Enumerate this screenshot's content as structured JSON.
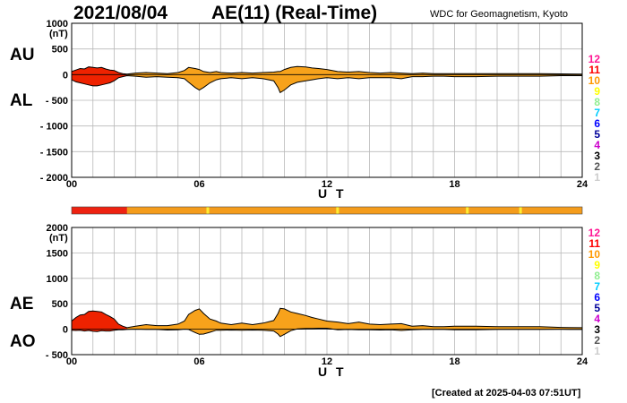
{
  "header": {
    "date": "2021/08/04",
    "title": "AE(11) (Real-Time)",
    "org": "WDC for Geomagnetism, Kyoto"
  },
  "footer": {
    "created": "[Created at 2025-04-03 07:51UT]"
  },
  "legend": {
    "labels": [
      "12",
      "11",
      "10",
      "9",
      "8",
      "7",
      "6",
      "5",
      "4",
      "3",
      "2",
      "1"
    ],
    "colors": [
      "#ff1493",
      "#ff0000",
      "#ff9900",
      "#ffff00",
      "#90ee90",
      "#00ccff",
      "#0000ff",
      "#000099",
      "#cc00cc",
      "#000000",
      "#555555",
      "#cccccc"
    ]
  },
  "colors": {
    "fill_early": "#ee2200",
    "fill_main": "#f7a21b",
    "bar_red": "#ee2211",
    "bar_orange": "#f49c1c",
    "bar_tick": "#ffee33"
  },
  "status_bar": {
    "red_until_ut": 2.6,
    "tick_hours": [
      6.4,
      12.5,
      18.6,
      21.1
    ]
  },
  "chart_data": [
    {
      "type": "area",
      "side_labels": {
        "upper": "AU",
        "lower": "AL"
      },
      "unit": "(nT)",
      "xlabel": "U T",
      "ylim": [
        -2000,
        1000
      ],
      "yticks": [
        1000,
        500,
        0,
        -500,
        -1000,
        -1500,
        -2000
      ],
      "ytick_labels": [
        "1000",
        "500",
        "0",
        "- 500",
        "- 1000",
        "- 1500",
        "- 2000"
      ],
      "xlim": [
        0,
        24
      ],
      "xticks": [
        0,
        6,
        12,
        18,
        24
      ],
      "xtick_labels": [
        "00",
        "06",
        "12",
        "18",
        "24"
      ],
      "grid": true,
      "series": [
        {
          "x": [
            0,
            0.2,
            0.4,
            0.6,
            0.8,
            1.0,
            1.2,
            1.4,
            1.6,
            1.8,
            2.0,
            2.2,
            2.4,
            2.6,
            3.0,
            3.5,
            4.0,
            4.5,
            5.0,
            5.3,
            5.5,
            5.8,
            6.0,
            6.2,
            6.5,
            6.8,
            7.0,
            7.5,
            8.0,
            8.5,
            9.0,
            9.5,
            9.7,
            9.8,
            10.0,
            10.3,
            10.6,
            11.0,
            11.3,
            11.6,
            12.0,
            12.5,
            13.0,
            13.5,
            14.0,
            14.5,
            15.0,
            15.5,
            16.0,
            16.5,
            17.0,
            17.5,
            18.0,
            19.0,
            20.0,
            21.0,
            22.0,
            23.0,
            24.0
          ],
          "values": [
            60,
            90,
            120,
            110,
            150,
            140,
            130,
            140,
            110,
            90,
            80,
            40,
            20,
            10,
            30,
            40,
            30,
            20,
            40,
            80,
            140,
            120,
            100,
            60,
            40,
            60,
            40,
            30,
            40,
            30,
            40,
            50,
            60,
            60,
            100,
            140,
            160,
            150,
            130,
            120,
            100,
            60,
            50,
            60,
            40,
            30,
            40,
            30,
            20,
            30,
            20,
            20,
            20,
            20,
            20,
            20,
            20,
            15,
            10
          ]
        },
        {
          "x": [
            0,
            0.2,
            0.4,
            0.6,
            0.8,
            1.0,
            1.2,
            1.4,
            1.6,
            1.8,
            2.0,
            2.2,
            2.4,
            2.6,
            3.0,
            3.5,
            4.0,
            4.5,
            5.0,
            5.3,
            5.5,
            5.8,
            6.0,
            6.2,
            6.5,
            6.8,
            7.0,
            7.5,
            8.0,
            8.5,
            9.0,
            9.5,
            9.7,
            9.8,
            10.0,
            10.3,
            10.6,
            11.0,
            11.3,
            11.6,
            12.0,
            12.5,
            13.0,
            13.5,
            14.0,
            14.5,
            15.0,
            15.5,
            16.0,
            16.5,
            17.0,
            17.5,
            18.0,
            19.0,
            20.0,
            21.0,
            22.0,
            23.0,
            24.0
          ],
          "values": [
            -100,
            -140,
            -160,
            -180,
            -200,
            -220,
            -220,
            -200,
            -180,
            -160,
            -120,
            -60,
            -40,
            -20,
            -30,
            -50,
            -40,
            -50,
            -60,
            -80,
            -150,
            -250,
            -300,
            -250,
            -160,
            -100,
            -80,
            -60,
            -80,
            -60,
            -80,
            -120,
            -250,
            -350,
            -300,
            -200,
            -150,
            -120,
            -100,
            -80,
            -60,
            -80,
            -60,
            -80,
            -60,
            -60,
            -60,
            -80,
            -40,
            -40,
            -30,
            -30,
            -40,
            -40,
            -30,
            -30,
            -30,
            -20,
            -20
          ]
        }
      ]
    },
    {
      "type": "area",
      "side_labels": {
        "upper": "AE",
        "lower": "AO"
      },
      "unit": "(nT)",
      "xlabel": "U T",
      "ylim": [
        -500,
        2000
      ],
      "yticks": [
        2000,
        1500,
        1000,
        500,
        0,
        -500
      ],
      "ytick_labels": [
        "2000",
        "1500",
        "1000",
        "500",
        "0",
        "- 500"
      ],
      "xlim": [
        0,
        24
      ],
      "xticks": [
        0,
        6,
        12,
        18,
        24
      ],
      "xtick_labels": [
        "00",
        "06",
        "12",
        "18",
        "24"
      ],
      "grid": true,
      "series": [
        {
          "x": [
            0,
            0.2,
            0.4,
            0.6,
            0.8,
            1.0,
            1.2,
            1.4,
            1.6,
            1.8,
            2.0,
            2.2,
            2.4,
            2.6,
            3.0,
            3.5,
            4.0,
            4.5,
            5.0,
            5.3,
            5.5,
            5.8,
            6.0,
            6.2,
            6.5,
            6.8,
            7.0,
            7.5,
            8.0,
            8.5,
            9.0,
            9.5,
            9.7,
            9.8,
            10.0,
            10.3,
            10.6,
            11.0,
            11.3,
            11.6,
            12.0,
            12.5,
            13.0,
            13.5,
            14.0,
            14.5,
            15.0,
            15.5,
            16.0,
            16.5,
            17.0,
            17.5,
            18.0,
            19.0,
            20.0,
            21.0,
            22.0,
            23.0,
            24.0
          ],
          "values": [
            160,
            230,
            280,
            290,
            350,
            360,
            350,
            340,
            290,
            250,
            200,
            100,
            60,
            30,
            60,
            90,
            70,
            70,
            100,
            160,
            290,
            370,
            400,
            310,
            200,
            160,
            120,
            90,
            120,
            90,
            120,
            170,
            310,
            410,
            400,
            340,
            310,
            270,
            230,
            200,
            160,
            140,
            110,
            140,
            100,
            90,
            100,
            110,
            60,
            70,
            50,
            50,
            60,
            60,
            50,
            50,
            50,
            35,
            30
          ]
        },
        {
          "x": [
            0,
            0.2,
            0.4,
            0.6,
            0.8,
            1.0,
            1.2,
            1.4,
            1.6,
            1.8,
            2.0,
            2.2,
            2.4,
            2.6,
            3.0,
            3.5,
            4.0,
            4.5,
            5.0,
            5.3,
            5.5,
            5.8,
            6.0,
            6.2,
            6.5,
            6.8,
            7.0,
            7.5,
            8.0,
            8.5,
            9.0,
            9.5,
            9.7,
            9.8,
            10.0,
            10.3,
            10.6,
            11.0,
            11.3,
            11.6,
            12.0,
            12.5,
            13.0,
            13.5,
            14.0,
            14.5,
            15.0,
            15.5,
            16.0,
            16.5,
            17.0,
            17.5,
            18.0,
            19.0,
            20.0,
            21.0,
            22.0,
            23.0,
            24.0
          ],
          "values": [
            -20,
            -25,
            -20,
            -35,
            -25,
            -40,
            -45,
            -30,
            -35,
            -35,
            -20,
            -10,
            -10,
            -5,
            0,
            -5,
            -5,
            -15,
            -10,
            0,
            -5,
            -65,
            -100,
            -95,
            -60,
            -20,
            -20,
            -15,
            -20,
            -15,
            -20,
            -35,
            -95,
            -145,
            -100,
            -30,
            5,
            15,
            15,
            20,
            20,
            -10,
            -5,
            -10,
            -10,
            -15,
            -10,
            -25,
            -10,
            -5,
            -5,
            -5,
            -10,
            -10,
            -5,
            -5,
            -5,
            -3,
            -5
          ]
        }
      ]
    }
  ]
}
